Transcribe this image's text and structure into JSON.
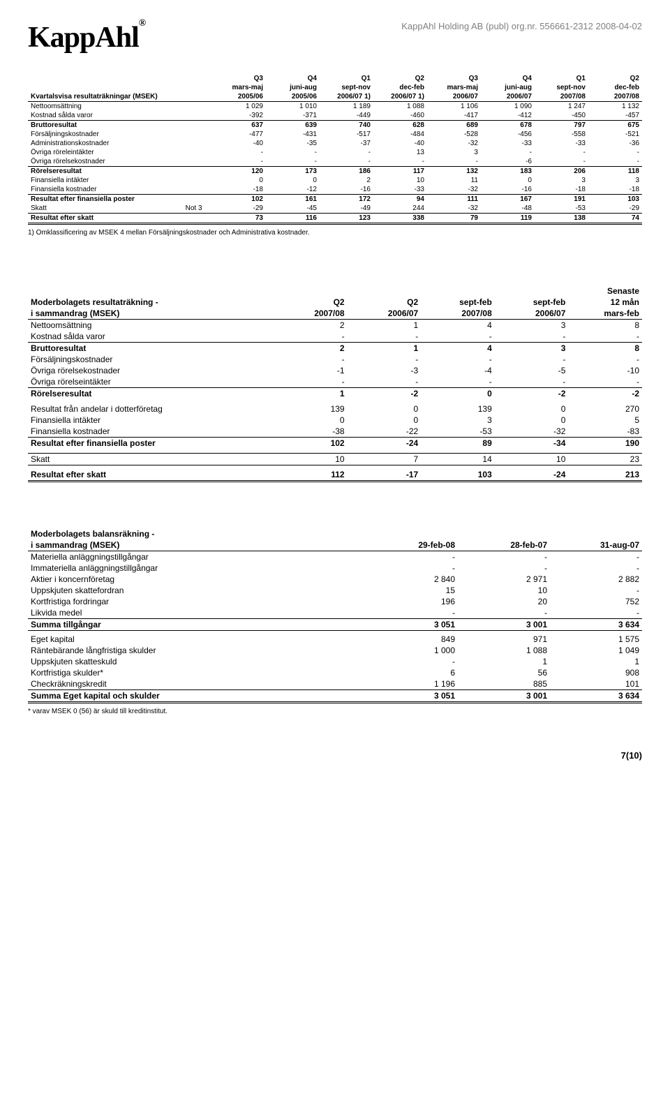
{
  "page": {
    "logo_text": "KappAhl",
    "reg": "®",
    "header_right": "KappAhl Holding AB (publ) org.nr. 556661-2312   2008-04-02",
    "page_number": "7(10)",
    "background_color": "#ffffff",
    "text_color": "#000000",
    "muted_color": "#808080"
  },
  "table1": {
    "headers_line1": [
      "",
      "",
      "Q3",
      "Q4",
      "Q1",
      "Q2",
      "Q3",
      "Q4",
      "Q1",
      "Q2"
    ],
    "headers_line2": [
      "",
      "",
      "mars-maj",
      "juni-aug",
      "sept-nov",
      "dec-feb",
      "mars-maj",
      "juni-aug",
      "sept-nov",
      "dec-feb"
    ],
    "headers_line3": [
      "Kvartalsvisa resultaträkningar (MSEK)",
      "",
      "2005/06",
      "2005/06",
      "2006/07 1)",
      "2006/07 1)",
      "2006/07",
      "2006/07",
      "2007/08",
      "2007/08"
    ],
    "rows": [
      {
        "label": "Nettoomsättning",
        "note": "",
        "v": [
          "1 029",
          "1 010",
          "1 189",
          "1 088",
          "1 106",
          "1 090",
          "1 247",
          "1 132"
        ],
        "cls": ""
      },
      {
        "label": "Kostnad sålda varor",
        "note": "",
        "v": [
          "-392",
          "-371",
          "-449",
          "-460",
          "-417",
          "-412",
          "-450",
          "-457"
        ],
        "cls": "border-bot-thin"
      },
      {
        "label": "Bruttoresultat",
        "note": "",
        "v": [
          "637",
          "639",
          "740",
          "628",
          "689",
          "678",
          "797",
          "675"
        ],
        "cls": "bold"
      },
      {
        "label": "Försäljningskostnader",
        "note": "",
        "v": [
          "-477",
          "-431",
          "-517",
          "-484",
          "-528",
          "-456",
          "-558",
          "-521"
        ],
        "cls": ""
      },
      {
        "label": "Administrationskostnader",
        "note": "",
        "v": [
          "-40",
          "-35",
          "-37",
          "-40",
          "-32",
          "-33",
          "-33",
          "-36"
        ],
        "cls": ""
      },
      {
        "label": "Övriga röreleintäkter",
        "note": "",
        "v": [
          "-",
          "-",
          "-",
          "13",
          "3",
          "-",
          "-",
          "-"
        ],
        "cls": ""
      },
      {
        "label": "Övriga rörelsekostnader",
        "note": "",
        "v": [
          "-",
          "-",
          "-",
          "-",
          "-",
          "-6",
          "-",
          "-"
        ],
        "cls": "border-bot-thin"
      },
      {
        "label": "Rörelseresultat",
        "note": "",
        "v": [
          "120",
          "173",
          "186",
          "117",
          "132",
          "183",
          "206",
          "118"
        ],
        "cls": "bold"
      },
      {
        "label": "Finansiella intäkter",
        "note": "",
        "v": [
          "0",
          "0",
          "2",
          "10",
          "11",
          "0",
          "3",
          "3"
        ],
        "cls": ""
      },
      {
        "label": "Finansiella kostnader",
        "note": "",
        "v": [
          "-18",
          "-12",
          "-16",
          "-33",
          "-32",
          "-16",
          "-18",
          "-18"
        ],
        "cls": "border-bot-thin"
      },
      {
        "label": "Resultat efter finansiella poster",
        "note": "",
        "v": [
          "102",
          "161",
          "172",
          "94",
          "111",
          "167",
          "191",
          "103"
        ],
        "cls": "bold"
      },
      {
        "label": "Skatt",
        "note": "Not 3",
        "v": [
          "-29",
          "-45",
          "-49",
          "244",
          "-32",
          "-48",
          "-53",
          "-29"
        ],
        "cls": "border-bot-thin"
      },
      {
        "label": "Resultat efter skatt",
        "note": "",
        "v": [
          "73",
          "116",
          "123",
          "338",
          "79",
          "119",
          "138",
          "74"
        ],
        "cls": "bold border-bot-dbl"
      }
    ],
    "footnote": "1) Omklassificering av MSEK 4 mellan Försäljningskostnader och Administrativa kostnader.",
    "col_widths_pct": [
      24,
      6,
      8.75,
      8.75,
      8.75,
      8.75,
      8.75,
      8.75,
      8.75,
      8.75
    ]
  },
  "table2": {
    "headers_line1": [
      "",
      "",
      "",
      "",
      "",
      "Senaste"
    ],
    "headers_line2": [
      "Moderbolagets resultaträkning -",
      "Q2",
      "Q2",
      "sept-feb",
      "sept-feb",
      "12 mån"
    ],
    "headers_line3": [
      "i sammandrag (MSEK)",
      "2007/08",
      "2006/07",
      "2007/08",
      "2006/07",
      "mars-feb"
    ],
    "rows": [
      {
        "label": "Nettoomsättning",
        "v": [
          "2",
          "1",
          "4",
          "3",
          "8"
        ],
        "cls": ""
      },
      {
        "label": "Kostnad sålda varor",
        "v": [
          "-",
          "-",
          "-",
          "-",
          "-"
        ],
        "cls": "border-bot-thin"
      },
      {
        "label": "Bruttoresultat",
        "v": [
          "2",
          "1",
          "4",
          "3",
          "8"
        ],
        "cls": "bold"
      },
      {
        "label": "Försäljningskostnader",
        "v": [
          "-",
          "-",
          "-",
          "-",
          "-"
        ],
        "cls": ""
      },
      {
        "label": "Övriga rörelsekostnader",
        "v": [
          "-1",
          "-3",
          "-4",
          "-5",
          "-10"
        ],
        "cls": ""
      },
      {
        "label": "Övriga rörelseintäkter",
        "v": [
          "-",
          "-",
          "-",
          "-",
          "-"
        ],
        "cls": "border-bot-thin"
      },
      {
        "label": "Rörelseresultat",
        "v": [
          "1",
          "-2",
          "0",
          "-2",
          "-2"
        ],
        "cls": "bold"
      },
      {
        "label": "Resultat från andelar i dotterföretag",
        "v": [
          "139",
          "0",
          "139",
          "0",
          "270"
        ],
        "cls": ""
      },
      {
        "label": "Finansiella intäkter",
        "v": [
          "0",
          "0",
          "3",
          "0",
          "5"
        ],
        "cls": ""
      },
      {
        "label": "Finansiella kostnader",
        "v": [
          "-38",
          "-22",
          "-53",
          "-32",
          "-83"
        ],
        "cls": "border-bot-thin"
      },
      {
        "label": "Resultat efter finansiella poster",
        "v": [
          "102",
          "-24",
          "89",
          "-34",
          "190"
        ],
        "cls": "bold"
      },
      {
        "label": "Skatt",
        "v": [
          "10",
          "7",
          "14",
          "10",
          "23"
        ],
        "cls": "border-top-thin border-bot-thin"
      },
      {
        "label": "Resultat efter skatt",
        "v": [
          "112",
          "-17",
          "103",
          "-24",
          "213"
        ],
        "cls": "bold border-bot-dbl"
      }
    ],
    "col_widths_pct": [
      40,
      12,
      12,
      12,
      12,
      12
    ]
  },
  "table3": {
    "headers_line1": [
      "Moderbolagets balansräkning -",
      "",
      "",
      ""
    ],
    "headers_line2": [
      " i sammandrag (MSEK)",
      "29-feb-08",
      "28-feb-07",
      "31-aug-07"
    ],
    "rows": [
      {
        "label": "Materiella anläggningstillgångar",
        "v": [
          "-",
          "-",
          "-"
        ],
        "cls": ""
      },
      {
        "label": "Immateriella anläggningstillgångar",
        "v": [
          "-",
          "-",
          "-"
        ],
        "cls": ""
      },
      {
        "label": "Aktier i koncernföretag",
        "v": [
          "2 840",
          "2 971",
          "2 882"
        ],
        "cls": ""
      },
      {
        "label": "Uppskjuten skattefordran",
        "v": [
          "15",
          "10",
          "-"
        ],
        "cls": ""
      },
      {
        "label": "Kortfristiga fordringar",
        "v": [
          "196",
          "20",
          "752"
        ],
        "cls": ""
      },
      {
        "label": "Likvida medel",
        "v": [
          "-",
          "-",
          "-"
        ],
        "cls": "border-bot-thin"
      },
      {
        "label": "Summa tillgångar",
        "v": [
          "3 051",
          "3 001",
          "3 634"
        ],
        "cls": "bold border-bot-thin"
      },
      {
        "label": "Eget kapital",
        "v": [
          "849",
          "971",
          "1 575"
        ],
        "cls": ""
      },
      {
        "label": "Räntebärande långfristiga skulder",
        "v": [
          "1 000",
          "1 088",
          "1 049"
        ],
        "cls": ""
      },
      {
        "label": "Uppskjuten skatteskuld",
        "v": [
          "-",
          "1",
          "1"
        ],
        "cls": ""
      },
      {
        "label": "Kortfristiga skulder*",
        "v": [
          "6",
          "56",
          "908"
        ],
        "cls": ""
      },
      {
        "label": "Checkräkningskredit",
        "v": [
          "1 196",
          "885",
          "101"
        ],
        "cls": "border-bot-thin"
      },
      {
        "label": "Summa Eget kapital och skulder",
        "v": [
          "3 051",
          "3 001",
          "3 634"
        ],
        "cls": "bold border-bot-dbl"
      }
    ],
    "footnote": "* varav MSEK 0 (56) är skuld till kreditinstitut.",
    "col_widths_pct": [
      55,
      15,
      15,
      15
    ]
  }
}
